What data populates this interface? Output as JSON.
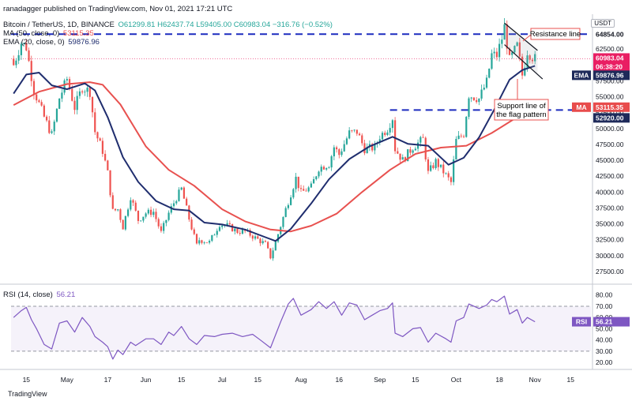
{
  "header": {
    "published_by": "ranadagger published on TradingView.com, Nov 01, 2021 17:21 UTC"
  },
  "legend": {
    "symbol": "Bitcoin / TetherUS, 1D, BINANCE",
    "ohlc": "O61299.81 H62437.74 L59405.00 C60983.04 −316.76 (−0.52%)",
    "ma_label": "MA (50, close, 0)",
    "ma_value": "53115.35",
    "ema_label": "EMA (20, close, 0)",
    "ema_value": "59876.96",
    "rsi_label": "RSI (14, close)",
    "rsi_value": "56.21"
  },
  "currency_badge": "USDT",
  "footer": {
    "brand": "TradingView"
  },
  "colors": {
    "candle_up": "#26a69a",
    "candle_down": "#ef5350",
    "ma": "#e8514f",
    "ema": "#1f2d6e",
    "rsi": "#7e57c2",
    "dashed": "#1c2bbf",
    "price_tag": "#e91e63",
    "ema_tag": "#1e2a5a",
    "ma_tag": "#e84c4c",
    "support_tag": "#1e2a5a"
  },
  "annotations": {
    "resistance": "Resistance line",
    "support": [
      "Support line of",
      "the flag pattern"
    ]
  },
  "price_tags": {
    "top_level": "64854.00",
    "last_price": "60983.04",
    "countdown": "06:38:20",
    "ema": "59876.96",
    "ema_short": "EMA",
    "ma": "53115.35",
    "ma_short": "MA",
    "support_level": "52920.00",
    "rsi": "56.21",
    "rsi_short": "RSI"
  },
  "chart_data": {
    "type": "candlestick",
    "x_tick_labels": [
      "15",
      "May",
      "17",
      "Jun",
      "15",
      "Jul",
      "15",
      "Aug",
      "16",
      "Sep",
      "15",
      "Oct",
      "18",
      "Nov",
      "15"
    ],
    "x_tick_dates": [
      "2021-04-15",
      "2021-05-01",
      "2021-05-17",
      "2021-06-01",
      "2021-06-15",
      "2021-07-01",
      "2021-07-15",
      "2021-08-01",
      "2021-08-16",
      "2021-09-01",
      "2021-09-15",
      "2021-10-01",
      "2021-10-18",
      "2021-11-01",
      "2021-11-15"
    ],
    "x_range": [
      "2021-04-09",
      "2021-11-23"
    ],
    "y_ticks": [
      27500,
      30000,
      32500,
      35000,
      37500,
      40000,
      42500,
      45000,
      47500,
      50000,
      52500,
      55000,
      57500,
      60000,
      62500,
      65000
    ],
    "y_range": [
      26500,
      67500
    ],
    "horizontal_levels": [
      64854,
      52920
    ],
    "last_close": 60983.04,
    "series_close": [
      [
        "2021-04-10",
        60000
      ],
      [
        "2021-04-13",
        63500
      ],
      [
        "2021-04-15",
        62800
      ],
      [
        "2021-04-18",
        56000
      ],
      [
        "2021-04-22",
        51800
      ],
      [
        "2021-04-25",
        49000
      ],
      [
        "2021-04-28",
        54800
      ],
      [
        "2021-05-01",
        57800
      ],
      [
        "2021-05-04",
        53300
      ],
      [
        "2021-05-07",
        56500
      ],
      [
        "2021-05-10",
        55800
      ],
      [
        "2021-05-12",
        49500
      ],
      [
        "2021-05-15",
        46500
      ],
      [
        "2021-05-17",
        43000
      ],
      [
        "2021-05-19",
        37000
      ],
      [
        "2021-05-21",
        37300
      ],
      [
        "2021-05-23",
        34500
      ],
      [
        "2021-05-26",
        39300
      ],
      [
        "2021-05-29",
        35600
      ],
      [
        "2021-06-01",
        36700
      ],
      [
        "2021-06-04",
        36900
      ],
      [
        "2021-06-07",
        33600
      ],
      [
        "2021-06-10",
        36700
      ],
      [
        "2021-06-13",
        39100
      ],
      [
        "2021-06-15",
        40500
      ],
      [
        "2021-06-18",
        35800
      ],
      [
        "2021-06-21",
        31600
      ],
      [
        "2021-06-22",
        32500
      ],
      [
        "2021-06-26",
        32100
      ],
      [
        "2021-06-30",
        35000
      ],
      [
        "2021-07-03",
        34700
      ],
      [
        "2021-07-07",
        33800
      ],
      [
        "2021-07-10",
        33800
      ],
      [
        "2021-07-14",
        32800
      ],
      [
        "2021-07-18",
        31800
      ],
      [
        "2021-07-20",
        29800
      ],
      [
        "2021-07-22",
        32100
      ],
      [
        "2021-07-26",
        37300
      ],
      [
        "2021-07-30",
        42200
      ],
      [
        "2021-08-01",
        39900
      ],
      [
        "2021-08-05",
        40800
      ],
      [
        "2021-08-08",
        43800
      ],
      [
        "2021-08-12",
        44400
      ],
      [
        "2021-08-14",
        47100
      ],
      [
        "2021-08-16",
        45900
      ],
      [
        "2021-08-20",
        49300
      ],
      [
        "2021-08-23",
        49500
      ],
      [
        "2021-08-26",
        46800
      ],
      [
        "2021-08-30",
        47000
      ],
      [
        "2021-09-01",
        48800
      ],
      [
        "2021-09-04",
        50000
      ],
      [
        "2021-09-06",
        51700
      ],
      [
        "2021-09-07",
        46800
      ],
      [
        "2021-09-10",
        45000
      ],
      [
        "2021-09-14",
        47100
      ],
      [
        "2021-09-18",
        48300
      ],
      [
        "2021-09-20",
        43000
      ],
      [
        "2021-09-23",
        44800
      ],
      [
        "2021-09-26",
        43200
      ],
      [
        "2021-09-29",
        41500
      ],
      [
        "2021-10-01",
        48100
      ],
      [
        "2021-10-04",
        49200
      ],
      [
        "2021-10-06",
        55300
      ],
      [
        "2021-10-10",
        54700
      ],
      [
        "2021-10-13",
        57300
      ],
      [
        "2021-10-15",
        61600
      ],
      [
        "2021-10-17",
        61500
      ],
      [
        "2021-10-19",
        64200
      ],
      [
        "2021-10-20",
        66000
      ],
      [
        "2021-10-22",
        60700
      ],
      [
        "2021-10-25",
        63000
      ],
      [
        "2021-10-27",
        58400
      ],
      [
        "2021-10-29",
        62200
      ],
      [
        "2021-10-31",
        61300
      ],
      [
        "2021-11-01",
        60983
      ]
    ],
    "ema20": [
      [
        "2021-04-10",
        55500
      ],
      [
        "2021-04-15",
        58500
      ],
      [
        "2021-04-20",
        58800
      ],
      [
        "2021-04-25",
        56800
      ],
      [
        "2021-05-01",
        56200
      ],
      [
        "2021-05-08",
        57100
      ],
      [
        "2021-05-12",
        56000
      ],
      [
        "2021-05-17",
        51800
      ],
      [
        "2021-05-23",
        45500
      ],
      [
        "2021-05-29",
        41600
      ],
      [
        "2021-06-05",
        38600
      ],
      [
        "2021-06-12",
        37300
      ],
      [
        "2021-06-18",
        37100
      ],
      [
        "2021-06-24",
        35200
      ],
      [
        "2021-07-01",
        34900
      ],
      [
        "2021-07-10",
        34100
      ],
      [
        "2021-07-18",
        32900
      ],
      [
        "2021-07-22",
        32300
      ],
      [
        "2021-07-28",
        34200
      ],
      [
        "2021-08-05",
        38200
      ],
      [
        "2021-08-12",
        42000
      ],
      [
        "2021-08-20",
        45200
      ],
      [
        "2021-08-28",
        47200
      ],
      [
        "2021-09-06",
        48700
      ],
      [
        "2021-09-12",
        47600
      ],
      [
        "2021-09-20",
        47300
      ],
      [
        "2021-09-28",
        44300
      ],
      [
        "2021-10-04",
        45400
      ],
      [
        "2021-10-10",
        48600
      ],
      [
        "2021-10-16",
        53000
      ],
      [
        "2021-10-22",
        57700
      ],
      [
        "2021-10-27",
        59200
      ],
      [
        "2021-11-01",
        59877
      ]
    ],
    "ma50": [
      [
        "2021-04-10",
        53700
      ],
      [
        "2021-04-20",
        55800
      ],
      [
        "2021-05-01",
        57000
      ],
      [
        "2021-05-10",
        57300
      ],
      [
        "2021-05-15",
        56900
      ],
      [
        "2021-05-22",
        53800
      ],
      [
        "2021-06-01",
        47200
      ],
      [
        "2021-06-10",
        43500
      ],
      [
        "2021-06-20",
        41000
      ],
      [
        "2021-07-01",
        37300
      ],
      [
        "2021-07-10",
        35400
      ],
      [
        "2021-07-20",
        34100
      ],
      [
        "2021-07-28",
        33800
      ],
      [
        "2021-08-05",
        34700
      ],
      [
        "2021-08-15",
        36600
      ],
      [
        "2021-08-25",
        40000
      ],
      [
        "2021-09-05",
        43500
      ],
      [
        "2021-09-15",
        46000
      ],
      [
        "2021-09-25",
        47000
      ],
      [
        "2021-10-05",
        47300
      ],
      [
        "2021-10-15",
        49300
      ],
      [
        "2021-10-25",
        51800
      ],
      [
        "2021-11-01",
        53115
      ]
    ],
    "rsi": {
      "y_ticks": [
        20,
        30,
        40,
        50,
        60,
        70,
        80
      ],
      "y_range": [
        18,
        84
      ],
      "levels": [
        70,
        30
      ],
      "values": [
        [
          "2021-04-10",
          60
        ],
        [
          "2021-04-13",
          66
        ],
        [
          "2021-04-15",
          69
        ],
        [
          "2021-04-17",
          58
        ],
        [
          "2021-04-19",
          50
        ],
        [
          "2021-04-22",
          36
        ],
        [
          "2021-04-25",
          32
        ],
        [
          "2021-04-28",
          55
        ],
        [
          "2021-05-01",
          57
        ],
        [
          "2021-05-04",
          47
        ],
        [
          "2021-05-07",
          60
        ],
        [
          "2021-05-10",
          52
        ],
        [
          "2021-05-12",
          43
        ],
        [
          "2021-05-15",
          38
        ],
        [
          "2021-05-17",
          34
        ],
        [
          "2021-05-19",
          23
        ],
        [
          "2021-05-21",
          31
        ],
        [
          "2021-05-23",
          27
        ],
        [
          "2021-05-26",
          38
        ],
        [
          "2021-05-28",
          35
        ],
        [
          "2021-06-01",
          41
        ],
        [
          "2021-06-04",
          41
        ],
        [
          "2021-06-07",
          36
        ],
        [
          "2021-06-10",
          47
        ],
        [
          "2021-06-12",
          44
        ],
        [
          "2021-06-15",
          52
        ],
        [
          "2021-06-18",
          41
        ],
        [
          "2021-06-21",
          36
        ],
        [
          "2021-06-24",
          44
        ],
        [
          "2021-06-28",
          43
        ],
        [
          "2021-07-01",
          45
        ],
        [
          "2021-07-05",
          46
        ],
        [
          "2021-07-09",
          43
        ],
        [
          "2021-07-13",
          45
        ],
        [
          "2021-07-16",
          40
        ],
        [
          "2021-07-20",
          33
        ],
        [
          "2021-07-24",
          56
        ],
        [
          "2021-07-27",
          72
        ],
        [
          "2021-07-29",
          77
        ],
        [
          "2021-08-01",
          62
        ],
        [
          "2021-08-05",
          67
        ],
        [
          "2021-08-08",
          74
        ],
        [
          "2021-08-11",
          68
        ],
        [
          "2021-08-14",
          74
        ],
        [
          "2021-08-17",
          62
        ],
        [
          "2021-08-20",
          73
        ],
        [
          "2021-08-23",
          71
        ],
        [
          "2021-08-26",
          58
        ],
        [
          "2021-08-29",
          62
        ],
        [
          "2021-09-01",
          66
        ],
        [
          "2021-09-04",
          68
        ],
        [
          "2021-09-06",
          73
        ],
        [
          "2021-09-07",
          46
        ],
        [
          "2021-09-10",
          43
        ],
        [
          "2021-09-14",
          50
        ],
        [
          "2021-09-17",
          51
        ],
        [
          "2021-09-20",
          38
        ],
        [
          "2021-09-23",
          46
        ],
        [
          "2021-09-27",
          41
        ],
        [
          "2021-09-29",
          38
        ],
        [
          "2021-10-01",
          57
        ],
        [
          "2021-10-04",
          60
        ],
        [
          "2021-10-06",
          72
        ],
        [
          "2021-10-10",
          68
        ],
        [
          "2021-10-13",
          71
        ],
        [
          "2021-10-15",
          76
        ],
        [
          "2021-10-17",
          74
        ],
        [
          "2021-10-20",
          79
        ],
        [
          "2021-10-22",
          63
        ],
        [
          "2021-10-25",
          67
        ],
        [
          "2021-10-27",
          55
        ],
        [
          "2021-10-29",
          60
        ],
        [
          "2021-11-01",
          56.21
        ]
      ]
    }
  }
}
